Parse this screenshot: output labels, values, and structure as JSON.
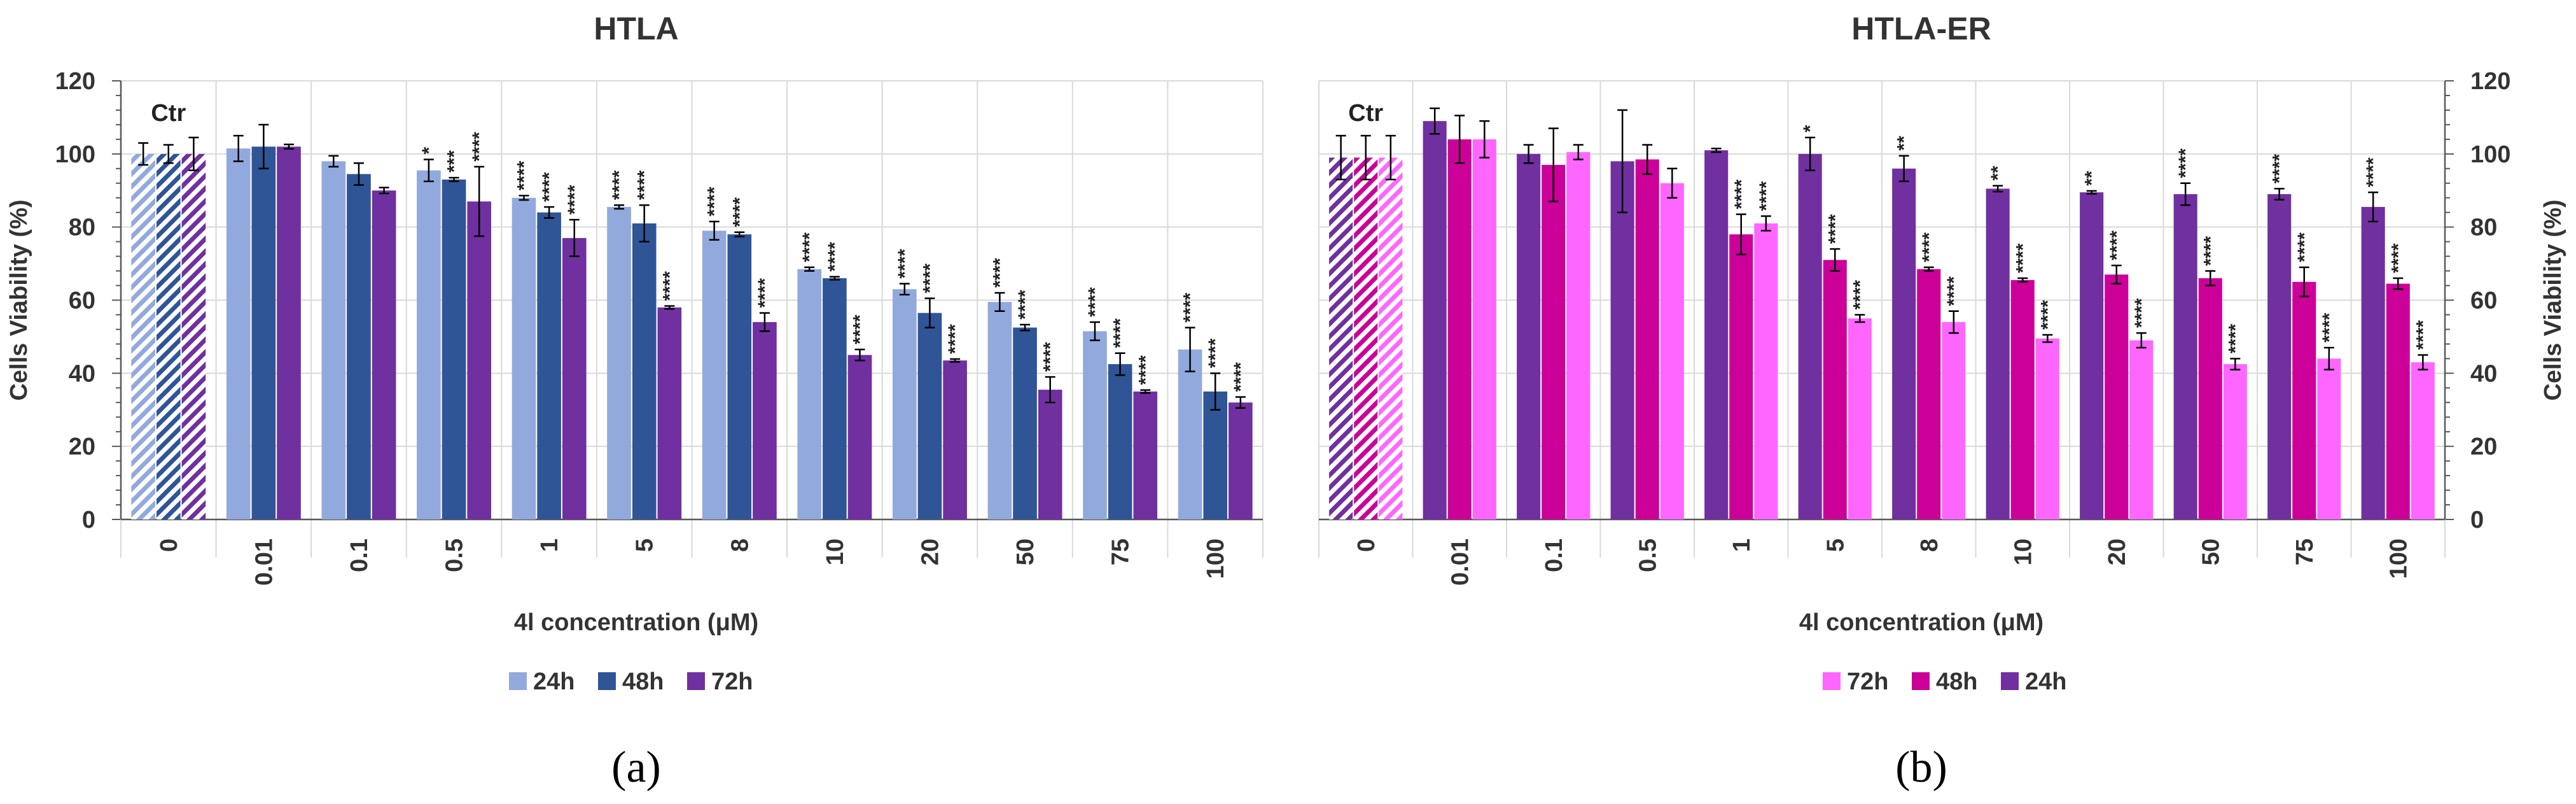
{
  "chart_data": [
    {
      "type": "bar",
      "title": "HTLA",
      "xlabel": "4l concentration (μM)",
      "ylabel": "Cells Viability (%)",
      "ylim": [
        0,
        120
      ],
      "yticks": [
        0,
        20,
        40,
        60,
        80,
        100,
        120
      ],
      "y_axis_side": "left",
      "categories": [
        "0",
        "0.01",
        "0.1",
        "0.5",
        "1",
        "5",
        "8",
        "10",
        "20",
        "50",
        "75",
        "100"
      ],
      "control_label": "Ctr",
      "panel_label": "(a)",
      "series": [
        {
          "name": "24h",
          "color": "#92A9DE",
          "values": [
            100,
            101.5,
            98,
            95.5,
            88,
            85.5,
            79,
            68.5,
            63,
            59.5,
            51.5,
            46.5
          ],
          "errors": [
            3,
            3.5,
            1.5,
            3,
            0.6,
            0.5,
            2.5,
            0.5,
            1.5,
            2.5,
            2.5,
            6
          ],
          "stars": [
            "",
            "",
            "",
            "*",
            "****",
            "****",
            "****",
            "****",
            "****",
            "****",
            "****",
            "****"
          ]
        },
        {
          "name": "48h",
          "color": "#2F5597",
          "values": [
            100,
            102,
            94.5,
            93,
            84,
            81,
            78,
            66,
            56.5,
            52.5,
            42.5,
            35
          ],
          "errors": [
            2.5,
            6,
            3,
            0.5,
            1.5,
            5,
            0.6,
            0.4,
            4,
            0.8,
            3,
            5
          ],
          "stars": [
            "",
            "",
            "",
            "***",
            "****",
            "****",
            "****",
            "****",
            "****",
            "****",
            "****",
            "****"
          ]
        },
        {
          "name": "72h",
          "color": "#7030A0",
          "values": [
            100,
            102,
            90,
            87,
            77,
            58,
            54,
            45,
            43.5,
            35.5,
            35,
            32
          ],
          "errors": [
            4.5,
            0.6,
            0.8,
            9.5,
            5,
            0.4,
            2.5,
            1.5,
            0.4,
            3.5,
            0.4,
            1.5
          ],
          "stars": [
            "",
            "",
            "",
            "****",
            "****",
            "****",
            "****",
            "****",
            "****",
            "****",
            "****",
            "****"
          ]
        }
      ],
      "legend": [
        "24h",
        "48h",
        "72h"
      ],
      "legend_position": "bottom"
    },
    {
      "type": "bar",
      "title": "HTLA-ER",
      "xlabel": "4l concentration (μM)",
      "ylabel": "Cells Viability (%)",
      "ylim": [
        0,
        120
      ],
      "yticks": [
        0,
        20,
        40,
        60,
        80,
        100,
        120
      ],
      "y_axis_side": "right",
      "categories": [
        "0",
        "0.01",
        "0.1",
        "0.5",
        "1",
        "5",
        "8",
        "10",
        "20",
        "50",
        "75",
        "100"
      ],
      "control_label": "Ctr",
      "panel_label": "(b)",
      "series": [
        {
          "name": "24h",
          "color": "#7030A0",
          "values": [
            99,
            109,
            100,
            98,
            101,
            100,
            96,
            90.5,
            89.5,
            89,
            89,
            85.5
          ],
          "errors": [
            6,
            3.5,
            2.5,
            14,
            0.5,
            4.5,
            3.5,
            0.8,
            0.4,
            3,
            1.5,
            4
          ],
          "stars": [
            "",
            "",
            "",
            "",
            "",
            "*",
            "**",
            "**",
            "**",
            "****",
            "****",
            "****"
          ]
        },
        {
          "name": "48h",
          "color": "#CC0099",
          "values": [
            99,
            104,
            97,
            98.5,
            78,
            71,
            68.5,
            65.5,
            67,
            66,
            65,
            64.5
          ],
          "errors": [
            6,
            6.5,
            10,
            4,
            5.5,
            3,
            0.5,
            0.5,
            2.5,
            2,
            4,
            1.5
          ],
          "stars": [
            "",
            "",
            "",
            "",
            "****",
            "****",
            "****",
            "****",
            "****",
            "****",
            "****",
            "****"
          ]
        },
        {
          "name": "72h",
          "color": "#FF66FF",
          "values": [
            99,
            104,
            100.5,
            92,
            81,
            55,
            54,
            49.5,
            49,
            42.5,
            44,
            43
          ],
          "errors": [
            6,
            5,
            2,
            4,
            2,
            1,
            3,
            1,
            2,
            1.5,
            3,
            2
          ],
          "stars": [
            "",
            "",
            "",
            "",
            "****",
            "****",
            "****",
            "****",
            "****",
            "****",
            "****",
            "****"
          ]
        }
      ],
      "legend": [
        "72h",
        "48h",
        "24h"
      ],
      "legend_position": "bottom"
    }
  ]
}
